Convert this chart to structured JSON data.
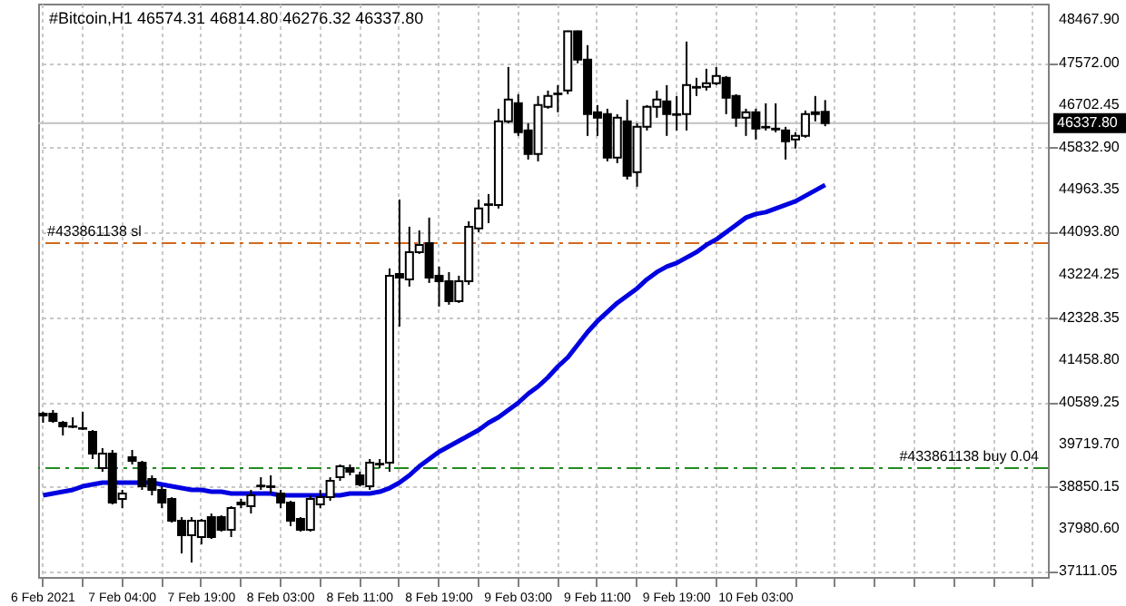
{
  "chart_data": {
    "type": "candlestick",
    "title": "#Bitcoin,H1  46574.31 46814.80 46276.32 46337.80",
    "categories": [
      "6 Feb 2021",
      null,
      null,
      null,
      null,
      null,
      null,
      null,
      "7 Feb 04:00",
      null,
      null,
      null,
      null,
      null,
      null,
      null,
      "7 Feb 19:00",
      null,
      null,
      null,
      null,
      null,
      null,
      null,
      "8 Feb 03:00",
      null,
      null,
      null,
      null,
      null,
      null,
      null,
      "8 Feb 11:00",
      null,
      null,
      null,
      null,
      null,
      null,
      null,
      "8 Feb 19:00",
      null,
      null,
      null,
      null,
      null,
      null,
      null,
      "9 Feb 03:00",
      null,
      null,
      null,
      null,
      null,
      null,
      null,
      "9 Feb 11:00",
      null,
      null,
      null,
      null,
      null,
      null,
      null,
      "9 Feb 19:00",
      null,
      null,
      null,
      null,
      null,
      null,
      null,
      "10 Feb 03:00",
      null,
      null,
      null,
      null,
      null,
      null,
      null,
      null,
      null,
      null,
      null,
      null,
      null,
      null,
      null,
      null,
      null,
      null,
      null,
      null,
      null,
      null,
      null,
      null,
      null,
      null,
      null,
      null,
      null
    ],
    "ohlc": [
      [
        40323,
        40398,
        40174,
        40361
      ],
      [
        40361,
        40436,
        40174,
        40211
      ],
      [
        40174,
        40211,
        39913,
        40099
      ],
      [
        40099,
        40286,
        40062,
        40090
      ],
      [
        40062,
        40398,
        40025,
        40050
      ],
      [
        39987,
        40025,
        39427,
        39539
      ],
      [
        39240,
        39651,
        39165,
        39539
      ],
      [
        39539,
        39614,
        38493,
        38530
      ],
      [
        38605,
        38792,
        38418,
        38717
      ],
      [
        39464,
        39614,
        39315,
        39390
      ],
      [
        39352,
        39390,
        38792,
        38866
      ],
      [
        39016,
        39091,
        38680,
        38792
      ],
      [
        38792,
        38866,
        38418,
        38530
      ],
      [
        38605,
        38642,
        38119,
        38157
      ],
      [
        38157,
        38231,
        37484,
        37858
      ],
      [
        37858,
        38231,
        37297,
        38157
      ],
      [
        37821,
        38194,
        37671,
        38157
      ],
      [
        38231,
        38306,
        37783,
        37821
      ],
      [
        38231,
        38269,
        37933,
        37970
      ],
      [
        37970,
        38456,
        37821,
        38418
      ],
      [
        38493,
        38605,
        38418,
        38530
      ],
      [
        38456,
        38792,
        38306,
        38680
      ],
      [
        38866,
        39053,
        38792,
        38880
      ],
      [
        38866,
        39091,
        38717,
        38850
      ],
      [
        38717,
        38792,
        38418,
        38530
      ],
      [
        38530,
        38568,
        38045,
        38157
      ],
      [
        38194,
        38231,
        37933,
        37970
      ],
      [
        37970,
        38680,
        37933,
        38605
      ],
      [
        38493,
        38792,
        38418,
        38642
      ],
      [
        38642,
        39053,
        38568,
        38979
      ],
      [
        39053,
        39315,
        38979,
        39277
      ],
      [
        39240,
        39315,
        39091,
        39165
      ],
      [
        39091,
        39165,
        38866,
        38904
      ],
      [
        38866,
        39427,
        38792,
        39352
      ],
      [
        39315,
        39427,
        39240,
        39330
      ],
      [
        39352,
        43350,
        39165,
        43200
      ],
      [
        43238,
        44769,
        42154,
        43163
      ],
      [
        43126,
        44209,
        42976,
        43686
      ],
      [
        43686,
        44134,
        43649,
        43835
      ],
      [
        43873,
        44396,
        43051,
        43163
      ],
      [
        43200,
        43387,
        42565,
        43088
      ],
      [
        43088,
        43275,
        42603,
        42677
      ],
      [
        42677,
        43200,
        42640,
        43088
      ],
      [
        43088,
        44321,
        43014,
        44209
      ],
      [
        44172,
        44769,
        44097,
        44583
      ],
      [
        44657,
        44881,
        44284,
        44670
      ],
      [
        44657,
        46637,
        44583,
        46376
      ],
      [
        46376,
        47497,
        46339,
        46824
      ],
      [
        46749,
        46936,
        46077,
        46152
      ],
      [
        46189,
        46339,
        45591,
        45703
      ],
      [
        45703,
        46899,
        45554,
        46712
      ],
      [
        46675,
        47011,
        46637,
        46899
      ],
      [
        46936,
        47123,
        46563,
        46950
      ],
      [
        47011,
        48244,
        46936,
        48230
      ],
      [
        48230,
        48244,
        47571,
        47646
      ],
      [
        47646,
        47945,
        46077,
        46525
      ],
      [
        46563,
        46712,
        46077,
        46451
      ],
      [
        46525,
        46637,
        45554,
        45629
      ],
      [
        45629,
        46525,
        45517,
        46451
      ],
      [
        46376,
        46824,
        45180,
        45255
      ],
      [
        45330,
        46339,
        45031,
        46264
      ],
      [
        46264,
        46712,
        46189,
        46675
      ],
      [
        46675,
        47011,
        46451,
        46824
      ],
      [
        46787,
        47123,
        46077,
        46525
      ],
      [
        46525,
        46899,
        46189,
        46510
      ],
      [
        46525,
        48020,
        46189,
        47123
      ],
      [
        47086,
        47273,
        46899,
        47070
      ],
      [
        47086,
        47459,
        47011,
        47160
      ],
      [
        47160,
        47497,
        47123,
        47310
      ],
      [
        47273,
        47310,
        46525,
        46862
      ],
      [
        46899,
        46936,
        46264,
        46451
      ],
      [
        46451,
        46637,
        46077,
        46563
      ],
      [
        46563,
        46637,
        46002,
        46227
      ],
      [
        46264,
        46749,
        46189,
        46250
      ],
      [
        46227,
        46749,
        46152,
        46210
      ],
      [
        46189,
        46264,
        45591,
        45965
      ],
      [
        46002,
        46152,
        45816,
        46077
      ],
      [
        46077,
        46600,
        46040,
        46525
      ],
      [
        46525,
        46899,
        46376,
        46563
      ],
      [
        46574.31,
        46814.8,
        46276.32,
        46337.8
      ],
      null,
      null,
      null,
      null,
      null,
      null,
      null,
      null,
      null,
      null,
      null,
      null,
      null,
      null,
      null,
      null,
      null,
      null,
      null,
      null,
      null,
      null
    ],
    "series": [
      {
        "type": "line",
        "color": "#0000e0",
        "values": [
          38680,
          38717,
          38754,
          38792,
          38866,
          38904,
          38941,
          38941,
          38941,
          38941,
          38941,
          38941,
          38904,
          38866,
          38829,
          38792,
          38792,
          38754,
          38754,
          38717,
          38717,
          38717,
          38717,
          38717,
          38680,
          38680,
          38680,
          38680,
          38680,
          38680,
          38680,
          38717,
          38717,
          38717,
          38754,
          38829,
          38941,
          39091,
          39277,
          39427,
          39577,
          39688,
          39800,
          39913,
          40025,
          40174,
          40286,
          40436,
          40585,
          40772,
          40921,
          41108,
          41332,
          41519,
          41781,
          42042,
          42266,
          42453,
          42640,
          42789,
          42939,
          43126,
          43275,
          43387,
          43462,
          43574,
          43686,
          43835,
          43947,
          44097,
          44246,
          44396,
          44471,
          44508,
          44583,
          44657,
          44732,
          44844,
          44956,
          45068,
          null,
          null,
          null,
          null,
          null,
          null,
          null,
          null,
          null,
          null,
          null,
          null,
          null,
          null,
          null,
          null,
          null,
          null,
          null,
          null,
          null,
          null
        ]
      }
    ],
    "ylim": [
      37000,
      48800
    ],
    "yticks": [
      {
        "value": 37111.05,
        "label": "37111.05"
      },
      {
        "value": 37980.6,
        "label": "37980.60"
      },
      {
        "value": 38850.15,
        "label": "38850.15"
      },
      {
        "value": 39719.7,
        "label": "39719.70"
      },
      {
        "value": 40589.25,
        "label": "40589.25"
      },
      {
        "value": 41458.8,
        "label": "41458.80"
      },
      {
        "value": 42328.35,
        "label": "42328.35"
      },
      {
        "value": 43224.25,
        "label": "43224.25"
      },
      {
        "value": 44093.8,
        "label": "44093.80"
      },
      {
        "value": 44963.35,
        "label": "44963.35"
      },
      {
        "value": 45832.9,
        "label": "45832.90"
      },
      {
        "value": 46702.45,
        "label": "46702.45"
      },
      {
        "value": 47572.0,
        "label": "47572.00"
      },
      {
        "value": 48467.9,
        "label": "48467.90"
      }
    ],
    "ref_lines": [
      {
        "axis": "y",
        "value": 46337.8,
        "label": "46337.80",
        "color": "#c0c0c0",
        "line_style": "solid"
      },
      {
        "axis": "y",
        "value": 43870,
        "label": "#433861138 sl",
        "color": "#d2691e",
        "line_style": "dashed"
      },
      {
        "axis": "y",
        "value": 39240,
        "label": "#433861138 buy 0.04",
        "color": "#228b22",
        "line_style": "dashed"
      }
    ],
    "grid": true
  }
}
